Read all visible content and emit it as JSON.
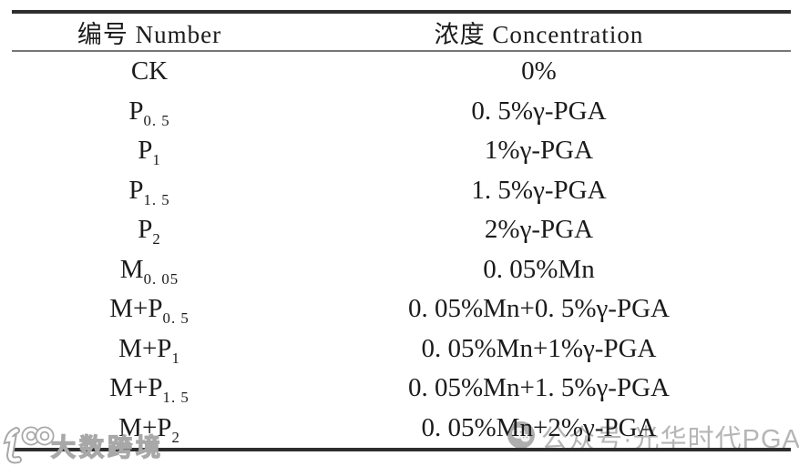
{
  "table": {
    "columns": [
      {
        "label": "编号 Number"
      },
      {
        "label": "浓度 Concentration"
      }
    ],
    "rows": [
      {
        "number": [
          {
            "t": "CK"
          }
        ],
        "conc": "0%"
      },
      {
        "number": [
          {
            "t": "P"
          },
          {
            "t": "0. 5",
            "sub": true
          }
        ],
        "conc": "0. 5%γ-PGA"
      },
      {
        "number": [
          {
            "t": "P"
          },
          {
            "t": "1",
            "sub": true
          }
        ],
        "conc": "1%γ-PGA"
      },
      {
        "number": [
          {
            "t": "P"
          },
          {
            "t": "1. 5",
            "sub": true
          }
        ],
        "conc": "1. 5%γ-PGA"
      },
      {
        "number": [
          {
            "t": "P"
          },
          {
            "t": "2",
            "sub": true
          }
        ],
        "conc": "2%γ-PGA"
      },
      {
        "number": [
          {
            "t": "M"
          },
          {
            "t": "0. 05",
            "sub": true
          }
        ],
        "conc": "0. 05%Mn"
      },
      {
        "number": [
          {
            "t": "M+P"
          },
          {
            "t": "0. 5",
            "sub": true
          }
        ],
        "conc": "0. 05%Mn+0. 5%γ-PGA"
      },
      {
        "number": [
          {
            "t": "M+P"
          },
          {
            "t": "1",
            "sub": true
          }
        ],
        "conc": "0. 05%Mn+1%γ-PGA"
      },
      {
        "number": [
          {
            "t": "M+P"
          },
          {
            "t": "1. 5",
            "sub": true
          }
        ],
        "conc": "0. 05%Mn+1. 5%γ-PGA"
      },
      {
        "number": [
          {
            "t": "M+P"
          },
          {
            "t": "2",
            "sub": true
          }
        ],
        "conc": "0. 05%Mn+2%γ-PGA"
      }
    ]
  },
  "watermarks": {
    "right": {
      "icon": "wechat-icon",
      "text": "公众号·光华时代PGA"
    },
    "left": {
      "logo": "dashu-logo",
      "text": "大数跨境"
    }
  },
  "colors": {
    "text": "#1b1b1b",
    "rule_heavy": "#2e2e2e",
    "rule_light": "#767676",
    "watermark_gray": "#b6b6b6",
    "watermark_outline": "#a8a8a8"
  }
}
